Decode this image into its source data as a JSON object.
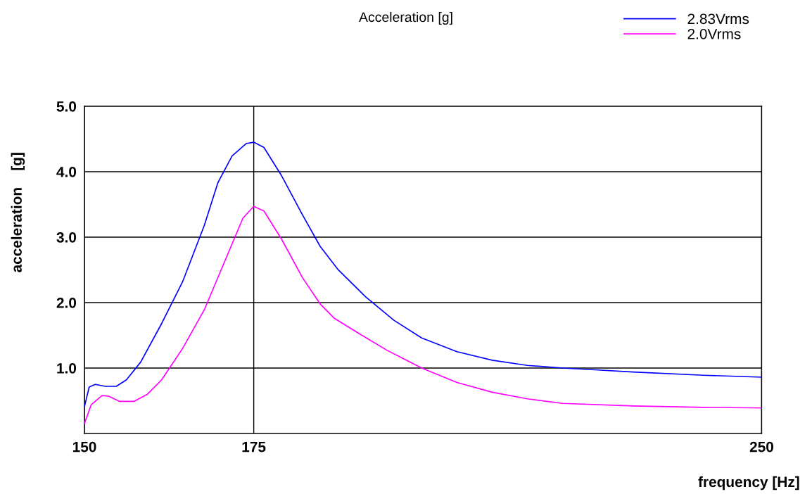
{
  "chart_data": {
    "type": "line",
    "title": "Acceleration [g]",
    "xlabel": "frequency [Hz]",
    "ylabel": "acceleration    [g]",
    "xlim": [
      150,
      250
    ],
    "xticks": [
      150,
      175,
      250
    ],
    "ylim": [
      0,
      5
    ],
    "yticks": [
      {
        "value": 1,
        "label": "1.0"
      },
      {
        "value": 2,
        "label": "2.0"
      },
      {
        "value": 3,
        "label": "3.0"
      },
      {
        "value": 4,
        "label": "4.0"
      },
      {
        "value": 5,
        "label": "5.0"
      }
    ],
    "grid": true,
    "legend": "top right",
    "series": [
      {
        "name": "2.83Vrms",
        "color": "#0000ff",
        "x": [
          150,
          150.7,
          151.6,
          153.1,
          154.7,
          156.2,
          158.3,
          161.4,
          164.5,
          167.7,
          169.7,
          171.8,
          173.9,
          175.0,
          176.5,
          179.1,
          182.2,
          184.8,
          187.4,
          191.5,
          195.7,
          199.8,
          205.0,
          210.2,
          215.4,
          220.6,
          225.8,
          231.0,
          241.4,
          250
        ],
        "values": [
          0.41,
          0.71,
          0.75,
          0.72,
          0.72,
          0.82,
          1.09,
          1.68,
          2.32,
          3.18,
          3.83,
          4.24,
          4.43,
          4.45,
          4.37,
          3.94,
          3.34,
          2.86,
          2.51,
          2.09,
          1.73,
          1.46,
          1.25,
          1.12,
          1.04,
          1.0,
          0.97,
          0.94,
          0.89,
          0.86
        ]
      },
      {
        "name": "2.0Vrms",
        "color": "#ff00ff",
        "x": [
          150,
          151.0,
          152.6,
          153.6,
          155.2,
          157.3,
          159.3,
          161.4,
          164.5,
          167.7,
          170.8,
          173.4,
          175.0,
          176.5,
          179.1,
          182.2,
          184.8,
          186.9,
          190.5,
          194.7,
          199.8,
          205.0,
          210.2,
          215.4,
          220.6,
          231.0,
          241.4,
          250
        ],
        "values": [
          0.15,
          0.44,
          0.58,
          0.57,
          0.49,
          0.49,
          0.6,
          0.82,
          1.3,
          1.89,
          2.65,
          3.29,
          3.47,
          3.4,
          2.97,
          2.38,
          1.98,
          1.76,
          1.53,
          1.27,
          1.0,
          0.78,
          0.63,
          0.53,
          0.46,
          0.42,
          0.4,
          0.39
        ]
      }
    ]
  }
}
